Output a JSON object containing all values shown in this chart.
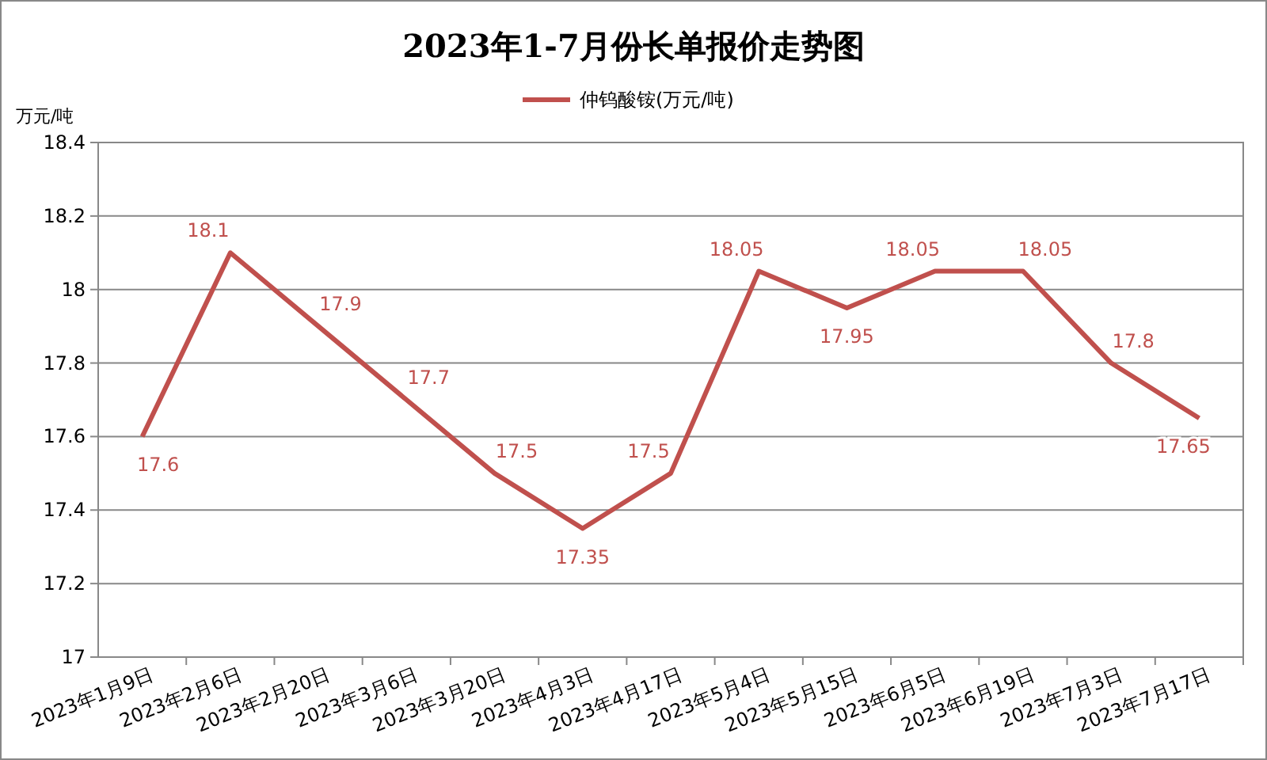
{
  "chart_data": {
    "type": "line",
    "title": "2023年1-7月份长单报价走势图",
    "ylabel": "万元/吨",
    "categories": [
      "2023年1月9日",
      "2023年2月6日",
      "2023年2月20日",
      "2023年3月6日",
      "2023年3月20日",
      "2023年4月3日",
      "2023年4月17日",
      "2023年5月4日",
      "2023年5月15日",
      "2023年6月5日",
      "2023年6月19日",
      "2023年7月3日",
      "2023年7月17日"
    ],
    "series": [
      {
        "name": "仲钨酸铵(万元/吨)",
        "color": "#c0504d",
        "values": [
          17.6,
          18.1,
          17.9,
          17.7,
          17.5,
          17.35,
          17.5,
          18.05,
          17.95,
          18.05,
          18.05,
          17.8,
          17.65
        ]
      }
    ],
    "ylim": [
      17,
      18.4
    ],
    "yticks": [
      17,
      17.2,
      17.4,
      17.6,
      17.8,
      18,
      18.2,
      18.4
    ],
    "grid": "y",
    "legend": "top",
    "data_labels": true,
    "marker": "none",
    "line_style": "solid"
  }
}
